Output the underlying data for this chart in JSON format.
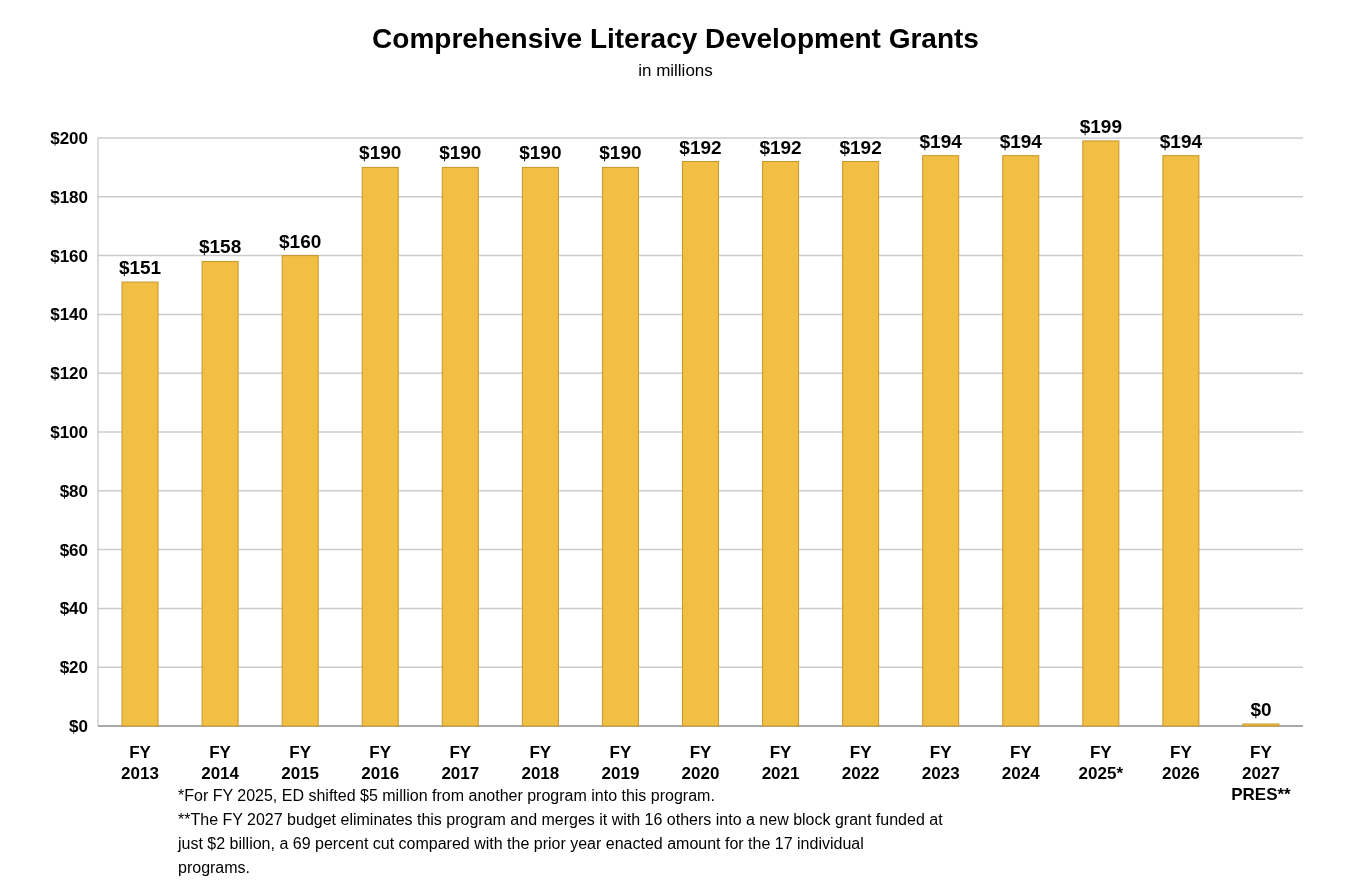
{
  "chart_data": {
    "type": "bar",
    "title": "Comprehensive Literacy Development Grants",
    "subtitle": "in millions",
    "categories": [
      "FY 2013",
      "FY 2014",
      "FY 2015",
      "FY 2016",
      "FY 2017",
      "FY 2018",
      "FY 2019",
      "FY 2020",
      "FY 2021",
      "FY 2022",
      "FY 2023",
      "FY 2024",
      "FY 2025*",
      "FY 2026",
      "FY 2027 PRES**"
    ],
    "values": [
      151,
      158,
      160,
      190,
      190,
      190,
      190,
      192,
      192,
      192,
      194,
      194,
      199,
      194,
      0
    ],
    "value_labels": [
      "$151",
      "$158",
      "$160",
      "$190",
      "$190",
      "$190",
      "$190",
      "$192",
      "$192",
      "$192",
      "$194",
      "$194",
      "$199",
      "$194",
      "$0"
    ],
    "color": "#f2bf45",
    "ylim": [
      0,
      200
    ],
    "yticks": [
      {
        "value": 0,
        "label": "$0"
      },
      {
        "value": 20,
        "label": "$20"
      },
      {
        "value": 40,
        "label": "$40"
      },
      {
        "value": 60,
        "label": "$60"
      },
      {
        "value": 80,
        "label": "$80"
      },
      {
        "value": 100,
        "label": "$100"
      },
      {
        "value": 120,
        "label": "$120"
      },
      {
        "value": 140,
        "label": "$140"
      },
      {
        "value": 160,
        "label": "$160"
      },
      {
        "value": 180,
        "label": "$180"
      },
      {
        "value": 200,
        "label": "$200"
      }
    ],
    "grid": "y",
    "annotations": [
      "*For FY 2025, ED shifted $5 million from another program into this program.",
      "**The FY 2027 budget eliminates this program and merges it with 16 others into a new block grant funded at just $2 billion, a 69 percent cut compared with the prior year enacted amount for the 17 individual programs."
    ]
  }
}
